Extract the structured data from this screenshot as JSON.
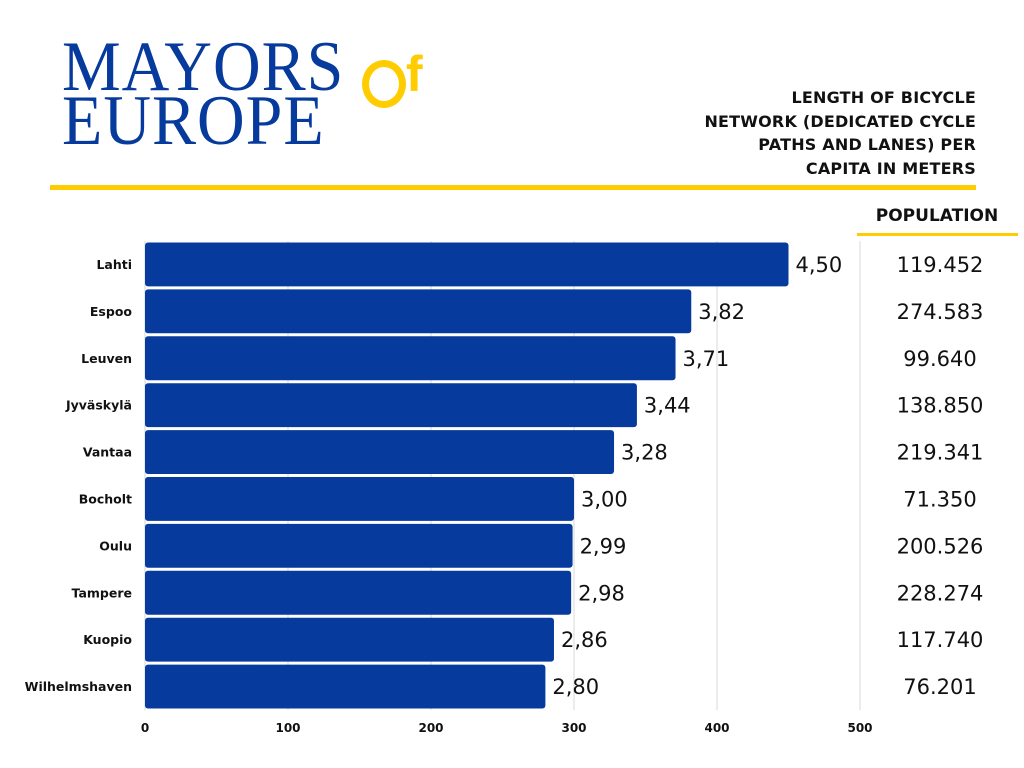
{
  "logo": {
    "line1": "MAYORS",
    "line2": "EUROPE",
    "of_f": "f",
    "brand_blue": "#063a9c",
    "brand_yellow": "#ffcc00"
  },
  "title": "LENGTH OF BICYCLE NETWORK (DEDICATED CYCLE PATHS AND LANES) PER CAPITA IN METERS",
  "title_lines": [
    "LENGTH OF BICYCLE",
    "NETWORK (DEDICATED CYCLE",
    "PATHS AND LANES) PER",
    "CAPITA IN METERS"
  ],
  "population_header": "POPULATION",
  "chart_data": {
    "type": "bar",
    "orientation": "horizontal",
    "title": "LENGTH OF BICYCLE NETWORK (DEDICATED CYCLE PATHS AND LANES) PER CAPITA IN METERS",
    "xlabel": "",
    "ylabel": "",
    "categories": [
      "Lahti",
      "Espoo",
      "Leuven",
      "Jyväskylä",
      "Vantaa",
      "Bocholt",
      "Oulu",
      "Tampere",
      "Kuopio",
      "Wilhelmshaven"
    ],
    "values": [
      4.5,
      3.82,
      3.71,
      3.44,
      3.28,
      3.0,
      2.99,
      2.98,
      2.86,
      2.8
    ],
    "value_labels": [
      "4,50",
      "3,82",
      "3,71",
      "3,44",
      "3,28",
      "3,00",
      "2,99",
      "2,98",
      "2,86",
      "2,80"
    ],
    "axis_scale_factor": 100,
    "xlim": [
      0,
      500
    ],
    "xticks": [
      0,
      100,
      200,
      300,
      400,
      500
    ],
    "xtick_labels": [
      "0",
      "100",
      "200",
      "300",
      "400",
      "500"
    ],
    "grid": true,
    "bar_color": "#063a9c",
    "population": [
      "119.452",
      "274.583",
      "99.640",
      "138.850",
      "219.341",
      "71.350",
      "200.526",
      "228.274",
      "117.740",
      "76.201"
    ],
    "legend": "none"
  }
}
